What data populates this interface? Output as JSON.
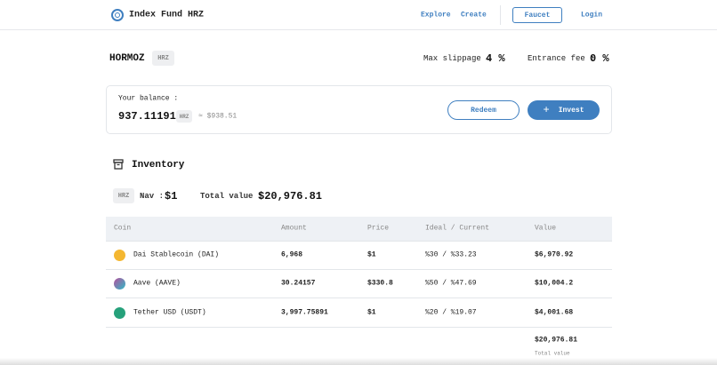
{
  "header": {
    "title": "Index Fund HRZ",
    "nav": [
      "Explore",
      "Create"
    ],
    "faucet": "Faucet",
    "login": "Login"
  },
  "fund": {
    "name": "HORMOZ",
    "badge": "HRZ",
    "slippage_label": "Max slippage :",
    "slippage": "4 %",
    "fee_label": "Entrance fee :",
    "fee": "0 %"
  },
  "balance": {
    "label": "Your balance :",
    "amount": "937.11191",
    "badge": "HRZ",
    "approx": "≈ $938.51",
    "redeem": "Redeem",
    "invest": "Invest"
  },
  "inventory": {
    "title": "Inventory",
    "badge": "HRZ",
    "nav_label": "Nav :",
    "nav": "$1",
    "total_label": "Total value :",
    "total": "$20,976.81"
  },
  "table": {
    "headers": [
      "Coin",
      "Amount",
      "Price",
      "Ideal / Current",
      "Value"
    ],
    "rows": [
      [
        "Dai Stablecoin (DAI)",
        "6,968",
        "$1",
        "%30 / %33.23",
        "$6,970.92"
      ],
      [
        "Aave (AAVE)",
        "30.24157",
        "$330.8",
        "%50 / %47.69",
        "$10,004.2"
      ],
      [
        "Tether USD (USDT)",
        "3,997.75891",
        "$1",
        "%20 / %19.07",
        "$4,001.68"
      ]
    ],
    "footer_value": "$20,976.81",
    "footer_label": "Total value"
  }
}
